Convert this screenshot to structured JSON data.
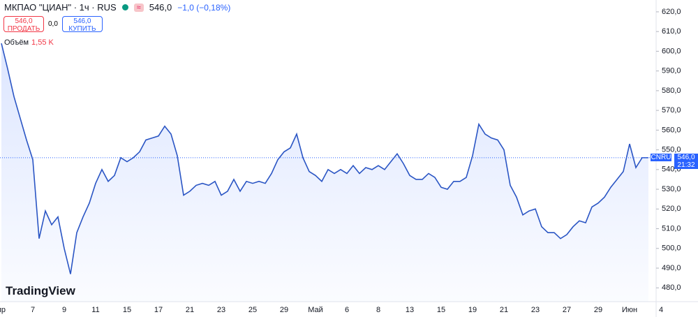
{
  "ui": {
    "symbol": "МКПАО \"ЦИАН\" · 1ч · RUS",
    "quote": "546,0",
    "change": "−1,0 (−0,18%)",
    "sell_price": "546,0",
    "sell": "ПРОДАТЬ",
    "spread": "0,0",
    "buy_price": "546,0",
    "buy": "КУПИТЬ",
    "volume_label": "Объём",
    "volume": "1,55 K",
    "ticker_tag": "CNRU",
    "time_tag": "21:32",
    "logo": "TradingView"
  },
  "chart_data": {
    "type": "area",
    "color": "#2a55c4",
    "categories": [
      "пр",
      null,
      null,
      null,
      null,
      "7",
      null,
      null,
      null,
      null,
      "9",
      null,
      null,
      null,
      null,
      "11",
      null,
      null,
      null,
      null,
      "15",
      null,
      null,
      null,
      null,
      "17",
      null,
      null,
      null,
      null,
      "21",
      null,
      null,
      null,
      null,
      "23",
      null,
      null,
      null,
      null,
      "25",
      null,
      null,
      null,
      null,
      "29",
      null,
      null,
      null,
      null,
      "Май",
      null,
      null,
      null,
      null,
      "6",
      null,
      null,
      null,
      null,
      "8",
      null,
      null,
      null,
      null,
      "13",
      null,
      null,
      null,
      null,
      "15",
      null,
      null,
      null,
      null,
      "19",
      null,
      null,
      null,
      null,
      "21",
      null,
      null,
      null,
      null,
      "23",
      null,
      null,
      null,
      null,
      "27",
      null,
      null,
      null,
      null,
      "29",
      null,
      null,
      null,
      null,
      "Июн",
      null,
      null,
      null,
      null,
      "4",
      null
    ],
    "values": [
      604,
      591,
      577,
      566,
      555,
      545,
      505,
      519,
      512,
      516,
      500,
      487,
      508,
      516,
      523,
      533,
      540,
      534,
      537,
      546,
      544,
      546,
      549,
      555,
      556,
      557,
      562,
      558,
      547,
      527,
      529,
      532,
      533,
      532,
      534,
      527,
      529,
      535,
      529,
      534,
      533,
      534,
      533,
      538,
      545,
      549,
      551,
      558,
      546,
      539,
      537,
      534,
      540,
      538,
      540,
      538,
      542,
      538,
      541,
      540,
      542,
      540,
      544,
      548,
      543,
      537,
      535,
      535,
      538,
      536,
      531,
      530,
      534,
      534,
      536,
      547,
      563,
      558,
      556,
      555,
      550,
      532,
      526,
      517,
      519,
      520,
      511,
      508,
      508,
      505,
      507,
      511,
      514,
      513,
      521,
      523,
      526,
      531,
      535,
      539,
      553,
      541,
      546,
      546,
      null,
      null,
      null
    ],
    "ylim": [
      473,
      626
    ],
    "yticks": [
      {
        "value": 480,
        "label": "480,0"
      },
      {
        "value": 490,
        "label": "490,0"
      },
      {
        "value": 500,
        "label": "500,0"
      },
      {
        "value": 510,
        "label": "510,0"
      },
      {
        "value": 520,
        "label": "520,0"
      },
      {
        "value": 530,
        "label": "530,0"
      },
      {
        "value": 540,
        "label": "540,0"
      },
      {
        "value": 550,
        "label": "550,0"
      },
      {
        "value": 560,
        "label": "560,0"
      },
      {
        "value": 570,
        "label": "570,0"
      },
      {
        "value": 580,
        "label": "580,0"
      },
      {
        "value": 590,
        "label": "590,0"
      },
      {
        "value": 600,
        "label": "600,0"
      },
      {
        "value": 610,
        "label": "610,0"
      },
      {
        "value": 620,
        "label": "620,0"
      }
    ],
    "last_price": {
      "value": 546,
      "label": "546,0"
    }
  }
}
